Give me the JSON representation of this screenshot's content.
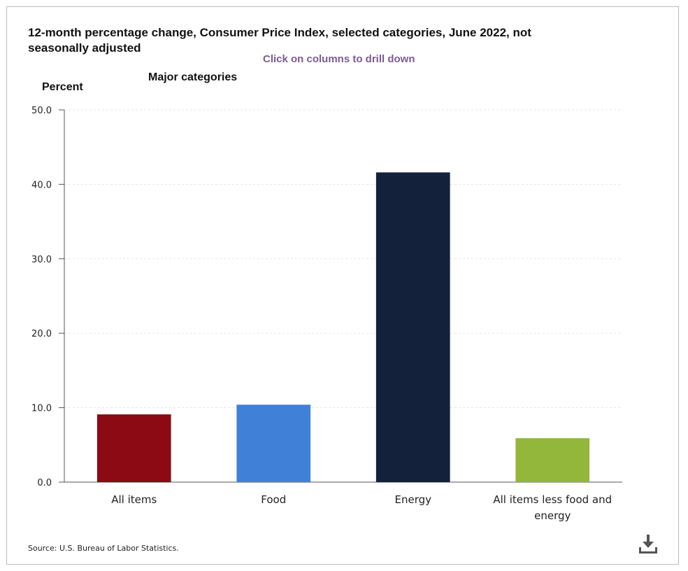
{
  "header": {
    "title_line1": "12-month percentage change, Consumer Price Index, selected categories, June 2022, not",
    "title_line2": "seasonally adjusted",
    "drill_hint": "Click on columns to drill down",
    "subtitle": "Major categories",
    "y_axis_label": "Percent"
  },
  "footer": {
    "source": "Source: U.S. Bureau of Labor Statistics.",
    "download_icon": "download-icon"
  },
  "chart_data": {
    "type": "bar",
    "title": "12-month percentage change, Consumer Price Index, selected categories, June 2022, not seasonally adjusted",
    "subtitle": "Major categories",
    "xlabel": "",
    "ylabel": "Percent",
    "ylim": [
      0,
      50
    ],
    "yticks": [
      "0.0",
      "10.0",
      "20.0",
      "30.0",
      "40.0",
      "50.0"
    ],
    "categories": [
      "All items",
      "Food",
      "Energy",
      "All items less food and energy"
    ],
    "category_lines": [
      [
        "All items"
      ],
      [
        "Food"
      ],
      [
        "Energy"
      ],
      [
        "All items less food and",
        "energy"
      ]
    ],
    "values": [
      9.1,
      10.4,
      41.6,
      5.9
    ],
    "colors": [
      "#8b0a14",
      "#4180d7",
      "#13213b",
      "#92b73b"
    ],
    "grid": true,
    "legend": "none"
  }
}
